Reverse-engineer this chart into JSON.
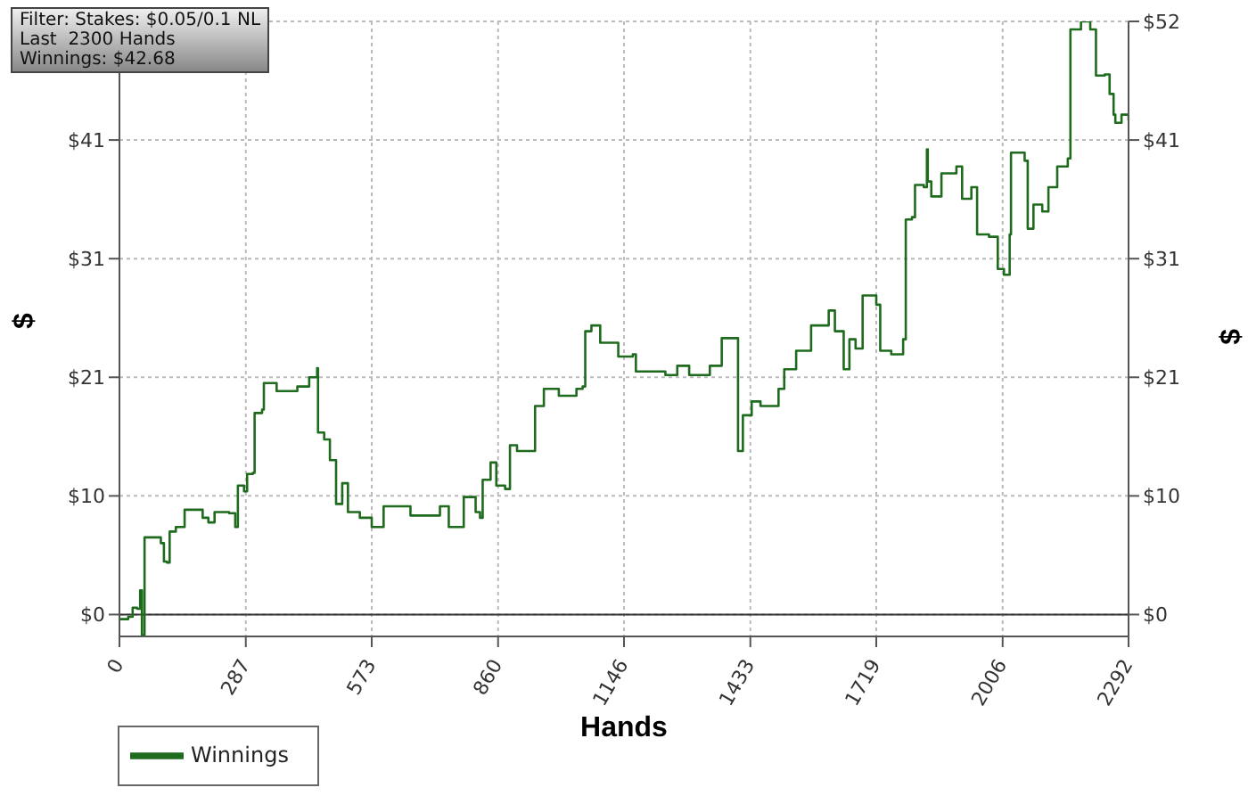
{
  "chart_data": {
    "type": "step",
    "xlabel": "Hands",
    "ylabel": "$",
    "y2label": "$",
    "annotations": [
      "Filter: Stakes: $0.05/0.1 NL",
      "Last  2300 Hands",
      "Winnings: $42.68"
    ],
    "x": [
      0,
      20,
      30,
      40,
      47,
      51,
      57,
      87,
      94,
      101,
      108,
      114,
      128,
      148,
      175,
      189,
      202,
      216,
      249,
      263,
      269,
      283,
      290,
      303,
      307,
      324,
      328,
      344,
      357,
      404,
      431,
      449,
      451,
      465,
      478,
      492,
      506,
      519,
      546,
      573,
      600,
      647,
      661,
      728,
      748,
      782,
      809,
      819,
      825,
      843,
      856,
      876,
      887,
      903,
      917,
      944,
      964,
      998,
      1038,
      1052,
      1058,
      1072,
      1092,
      1133,
      1166,
      1173,
      1240,
      1267,
      1294,
      1341,
      1368,
      1402,
      1405,
      1416,
      1436,
      1456,
      1497,
      1510,
      1537,
      1571,
      1611,
      1625,
      1645,
      1658,
      1672,
      1688,
      1719,
      1728,
      1753,
      1780,
      1786,
      1800,
      1807,
      1827,
      1834,
      1836,
      1844,
      1867,
      1901,
      1914,
      1935,
      1948,
      1975,
      1995,
      2009,
      2022,
      2025,
      2056,
      2063,
      2076,
      2096,
      2110,
      2130,
      2154,
      2160,
      2184,
      2205,
      2218,
      2238,
      2249,
      2258,
      2262,
      2276,
      2292
    ],
    "series": [
      {
        "name": "Winnings",
        "color": "#1e6b1e",
        "values": [
          -0.4,
          -0.2,
          0.6,
          0.5,
          2.1,
          -1.8,
          6.7,
          6.7,
          6.2,
          4.6,
          4.5,
          7.2,
          7.6,
          9.1,
          9.1,
          8.4,
          8.0,
          8.9,
          8.8,
          7.6,
          11.2,
          10.7,
          12.2,
          12.3,
          17.5,
          17.8,
          20.1,
          20.1,
          19.4,
          19.8,
          20.6,
          21.4,
          15.8,
          15.2,
          13.4,
          9.6,
          11.4,
          8.9,
          8.4,
          7.6,
          9.4,
          9.4,
          8.6,
          9.4,
          7.6,
          10.2,
          8.9,
          8.4,
          11.7,
          13.2,
          11.2,
          10.9,
          14.7,
          14.2,
          14.2,
          18.1,
          19.6,
          19.0,
          19.6,
          19.8,
          24.6,
          25.1,
          23.6,
          22.4,
          22.6,
          21.1,
          20.8,
          21.6,
          20.8,
          21.6,
          24.0,
          24.0,
          14.2,
          17.3,
          18.5,
          18.1,
          19.6,
          21.3,
          22.9,
          25.1,
          26.4,
          24.6,
          21.3,
          23.9,
          23.1,
          27.7,
          26.9,
          22.9,
          22.6,
          23.9,
          34.3,
          34.5,
          37.3,
          37.1,
          40.4,
          37.6,
          36.3,
          38.3,
          38.9,
          36.1,
          37.1,
          33.0,
          32.8,
          30.0,
          29.5,
          33.0,
          40.1,
          39.4,
          33.5,
          35.6,
          35.0,
          37.1,
          38.9,
          39.6,
          50.8,
          51.5,
          50.8,
          46.8,
          46.9,
          45.2,
          43.4,
          42.7,
          43.4,
          42.9
        ]
      }
    ],
    "xlim": [
      0,
      2292
    ],
    "xticks": [
      0,
      287,
      573,
      860,
      1146,
      1433,
      1719,
      2006,
      2292
    ],
    "ylim": [
      -1.9,
      51.5
    ],
    "yticks": [
      {
        "value": 0,
        "label": "$0"
      },
      {
        "value": 10.3,
        "label": "$10"
      },
      {
        "value": 20.6,
        "label": "$21"
      },
      {
        "value": 30.9,
        "label": "$31"
      },
      {
        "value": 41.2,
        "label": "$41"
      },
      {
        "value": 51.5,
        "label": null
      }
    ],
    "y2lim": [
      -1.9,
      51.5
    ],
    "y2ticks": [
      {
        "value": 0,
        "label": "$0"
      },
      {
        "value": 10.3,
        "label": "$10"
      },
      {
        "value": 20.6,
        "label": "$21"
      },
      {
        "value": 30.9,
        "label": "$31"
      },
      {
        "value": 41.2,
        "label": "$41"
      },
      {
        "value": 51.5,
        "label": "$52"
      }
    ],
    "ref_lines": [
      {
        "axis": "y",
        "value": 0,
        "color": "#333333"
      }
    ],
    "grid": true,
    "legend": "bottom left",
    "line_style": "solid"
  }
}
